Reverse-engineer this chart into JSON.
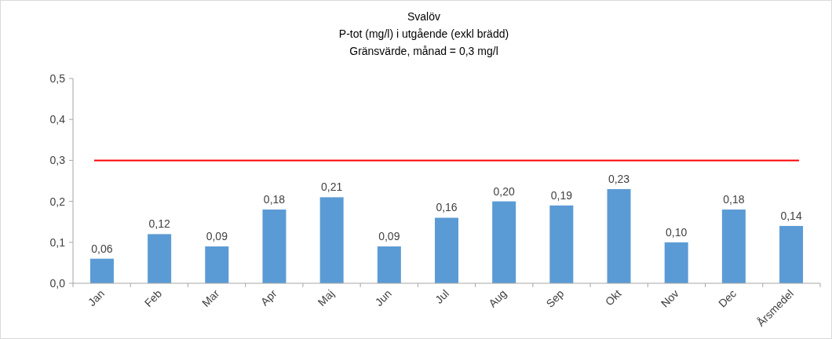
{
  "chart_data": {
    "type": "bar",
    "title": "Svalöv",
    "subtitle": "P-tot (mg/l) i utgående (exkl brädd)",
    "annotations": [
      "Gränsvärde, månad = 0,3 mg/l"
    ],
    "categories": [
      "Jan",
      "Feb",
      "Mar",
      "Apr",
      "Maj",
      "Jun",
      "Jul",
      "Aug",
      "Sep",
      "Okt",
      "Nov",
      "Dec",
      "Årsmedel"
    ],
    "values": [
      0.06,
      0.12,
      0.09,
      0.18,
      0.21,
      0.09,
      0.16,
      0.2,
      0.19,
      0.23,
      0.1,
      0.18,
      0.14
    ],
    "value_labels": [
      "0,06",
      "0,12",
      "0,09",
      "0,18",
      "0,21",
      "0,09",
      "0,16",
      "0,20",
      "0,19",
      "0,23",
      "0,10",
      "0,18",
      "0,14"
    ],
    "color": "#5b9bd5",
    "ylim": [
      0,
      0.5
    ],
    "yticks": [
      {
        "value": 0,
        "label": "0,0"
      },
      {
        "value": 0.1,
        "label": "0,1"
      },
      {
        "value": 0.2,
        "label": "0,2"
      },
      {
        "value": 0.3,
        "label": "0,3"
      },
      {
        "value": 0.4,
        "label": "0,4"
      },
      {
        "value": 0.5,
        "label": "0,5"
      }
    ],
    "ref_lines": [
      {
        "axis": "y",
        "value": 0.3,
        "color": "#ff0000"
      }
    ],
    "grid": false
  }
}
